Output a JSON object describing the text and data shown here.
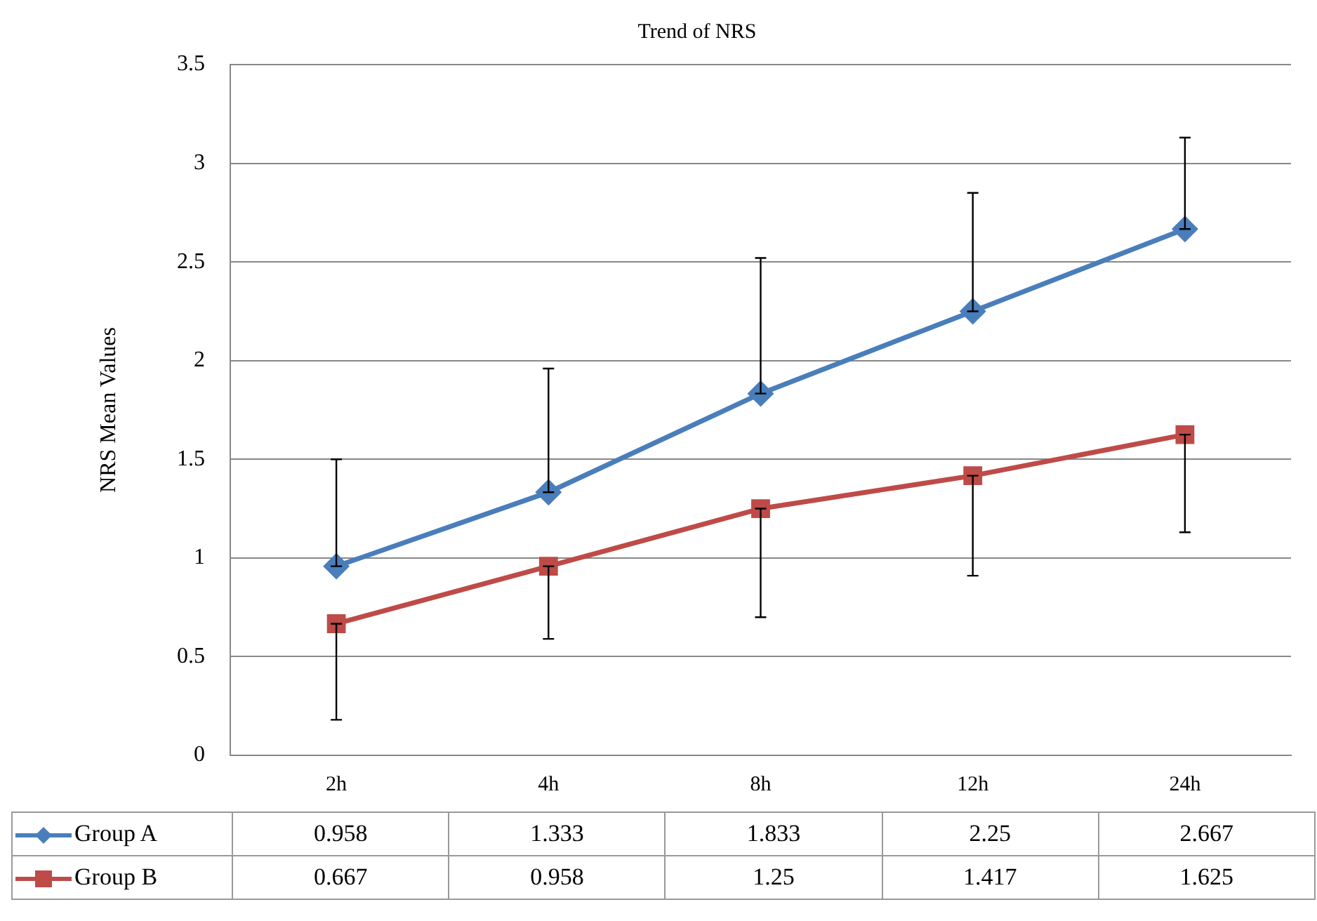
{
  "chart_data": {
    "type": "line",
    "title": "Trend of NRS",
    "ylabel": "NRS Mean Values",
    "categories": [
      "2h",
      "4h",
      "8h",
      "12h",
      "24h"
    ],
    "series": [
      {
        "name": "Group A",
        "color": "#4a7ebb",
        "marker": "diamond",
        "values": [
          0.958,
          1.333,
          1.833,
          2.25,
          2.667
        ],
        "errors": [
          [
            0.958,
            1.5
          ],
          [
            1.333,
            1.96
          ],
          [
            1.833,
            2.52
          ],
          [
            2.25,
            2.85
          ],
          [
            2.667,
            3.13
          ]
        ]
      },
      {
        "name": "Group B",
        "color": "#be4b48",
        "marker": "square",
        "values": [
          0.667,
          0.958,
          1.25,
          1.417,
          1.625
        ],
        "errors": [
          [
            0.18,
            0.667
          ],
          [
            0.59,
            0.958
          ],
          [
            0.7,
            1.25
          ],
          [
            0.91,
            1.417
          ],
          [
            1.13,
            1.625
          ]
        ]
      }
    ],
    "ylim": [
      0,
      3.5
    ],
    "yticks": [
      0,
      0.5,
      1,
      1.5,
      2,
      2.5,
      3,
      3.5
    ],
    "grid": "y",
    "legend": "bottom",
    "data_labels": true,
    "line_style": "solid"
  }
}
